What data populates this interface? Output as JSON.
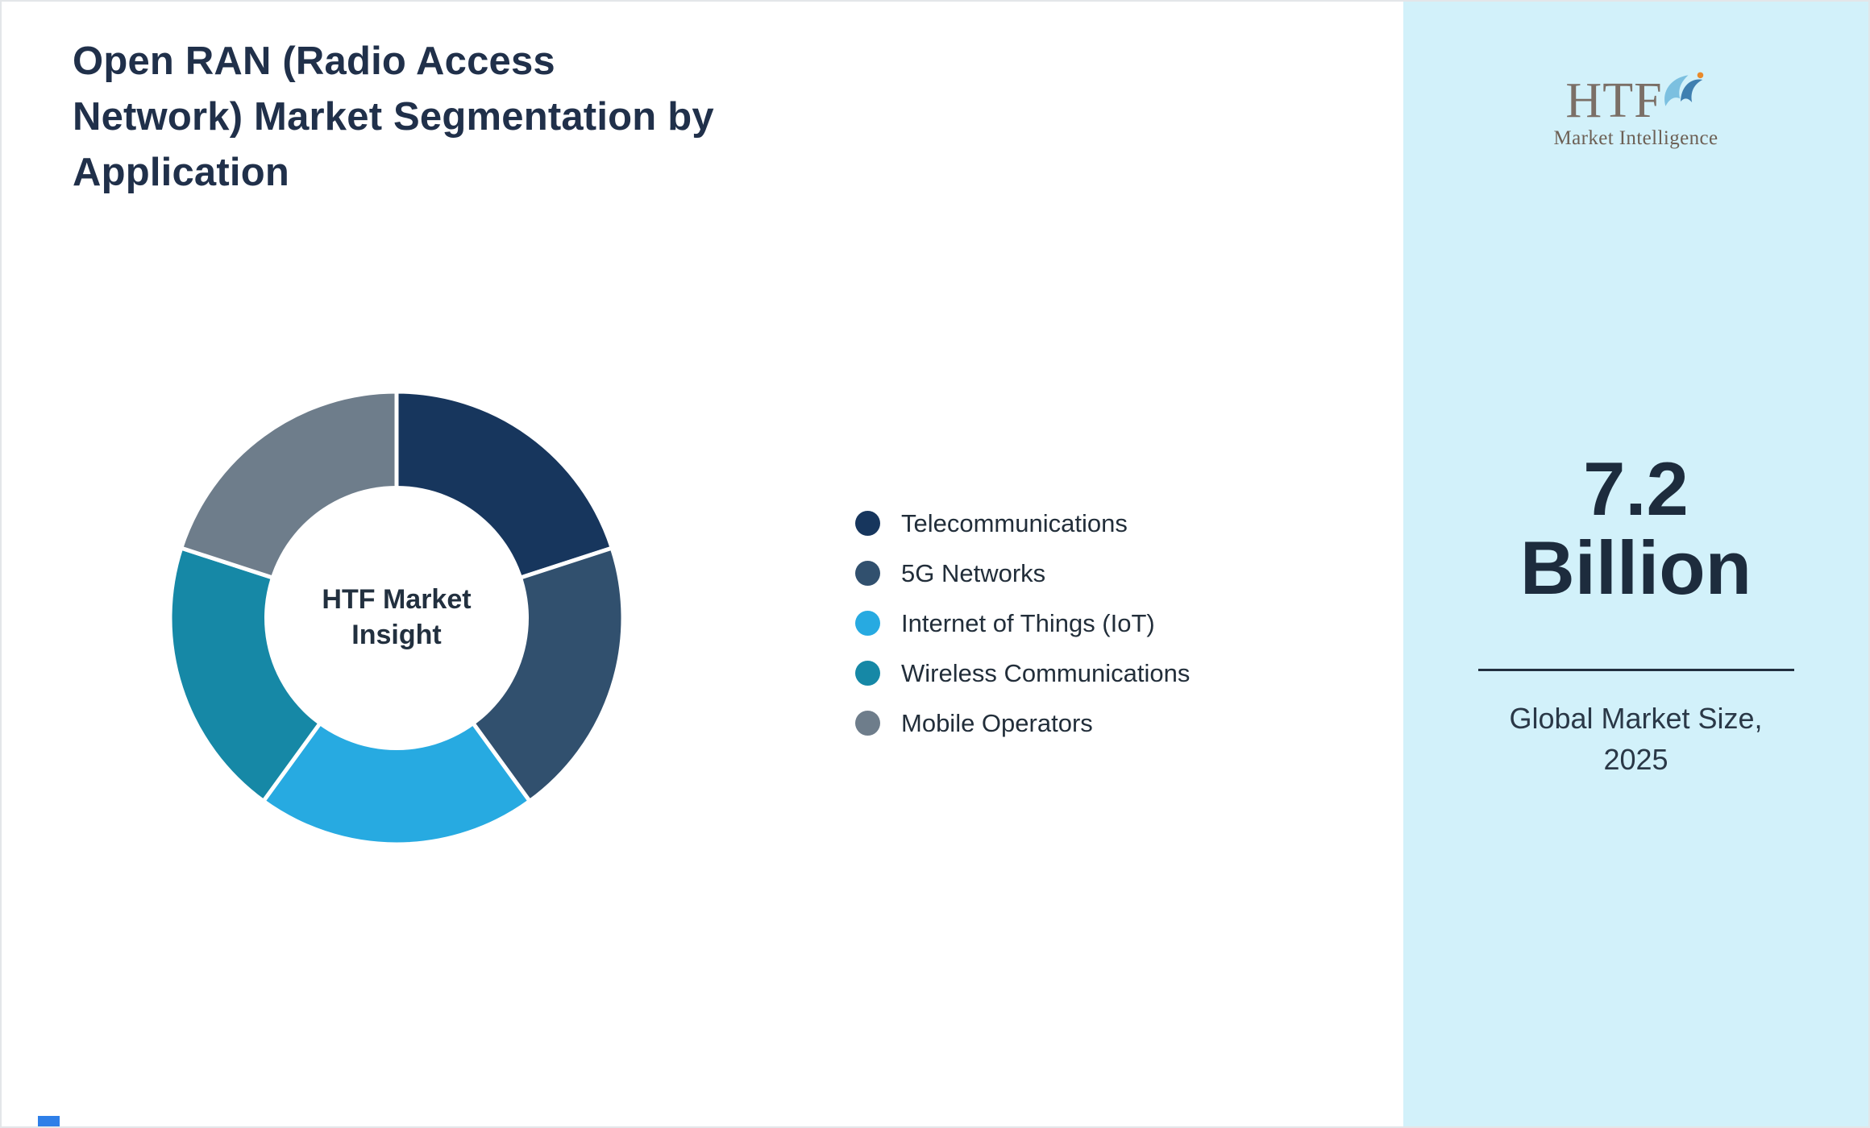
{
  "page": {
    "title_lines": [
      "Open RAN (Radio Access",
      "Network) Market Segmentation by",
      "Application"
    ]
  },
  "chart_data": {
    "type": "pie",
    "donut": true,
    "title": "Open RAN (Radio Access Network) Market Segmentation by Application",
    "center_label": "HTF Market Insight",
    "legend_position": "right",
    "start_angle_deg": 0,
    "direction": "clockwise",
    "categories": [
      "Telecommunications",
      "5G Networks",
      "Internet of Things (IoT)",
      "Wireless Communications",
      "Mobile Operators"
    ],
    "values": [
      20,
      20,
      20,
      20,
      20
    ],
    "colors": [
      "#17365d",
      "#31506e",
      "#27aae1",
      "#1688a6",
      "#6e7d8b"
    ]
  },
  "sidebar": {
    "background": "#d2f1fa",
    "logo": {
      "text": "HTF",
      "subtext": "Market Intelligence",
      "icon": "dolphin-icon"
    },
    "market_size_value": "7.2",
    "market_size_unit": "Billion",
    "caption_lines": [
      "Global Market Size,",
      "2025"
    ]
  }
}
